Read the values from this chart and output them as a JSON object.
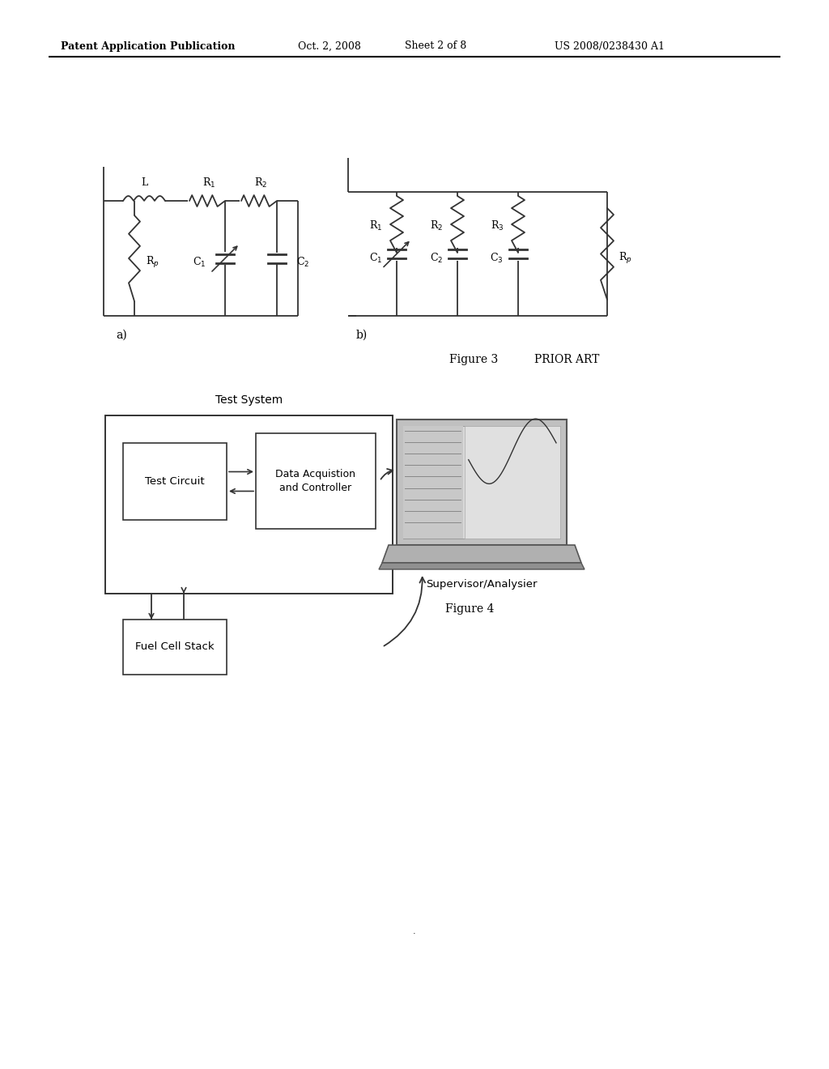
{
  "header_text": "Patent Application Publication",
  "header_date": "Oct. 2, 2008",
  "header_sheet": "Sheet 2 of 8",
  "header_patent": "US 2008/0238430 A1",
  "fig3_label": "Figure 3",
  "fig3_prior_art": "PRIOR ART",
  "fig4_label": "Figure 4",
  "label_a": "a)",
  "label_b": "b)",
  "line_color": "#333333",
  "lw": 1.3
}
